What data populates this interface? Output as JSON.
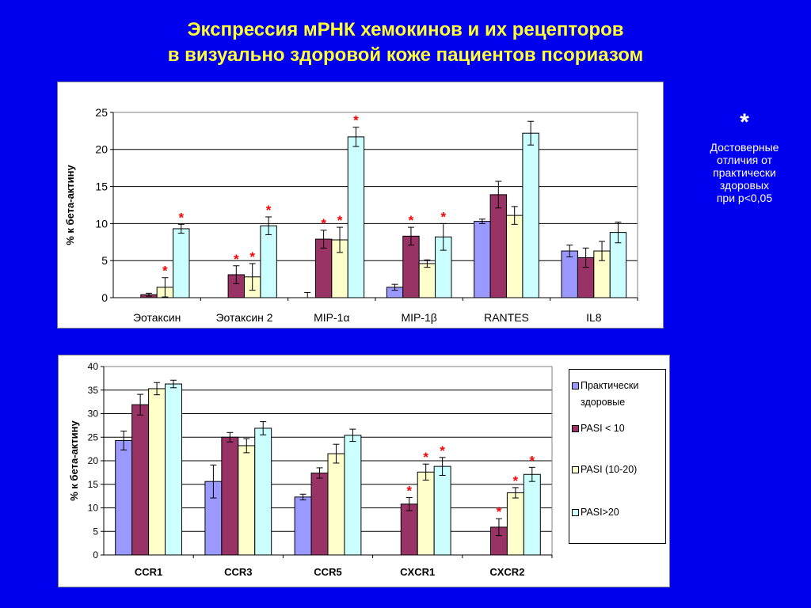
{
  "title": {
    "line1": "Экспрессия мРНК хемокинов и их рецепторов",
    "line2": "в визуально здоровой коже пациентов псориазом"
  },
  "note": {
    "star": "*",
    "lines": [
      "Достоверные",
      "отличия от",
      "практически",
      "здоровых",
      "при  p<0,05"
    ]
  },
  "colors": {
    "background": "#0000ee",
    "title": "#ffff33",
    "series": [
      "#9999ff",
      "#993366",
      "#ffffcc",
      "#ccffff"
    ],
    "significance": "#ff0000"
  },
  "legend": {
    "items": [
      {
        "lines": [
          "Практически",
          "здоровые"
        ]
      },
      {
        "lines": [
          "PASI < 10"
        ]
      },
      {
        "lines": [
          "PASI (10-20)"
        ]
      },
      {
        "lines": [
          "PASI>20"
        ]
      }
    ]
  },
  "chart_data": [
    {
      "type": "bar",
      "title": "",
      "xlabel": "",
      "ylabel": "% к бета-актину",
      "ylim": [
        0,
        25
      ],
      "yticks": [
        "0",
        "5",
        "10",
        "15",
        "20",
        "25"
      ],
      "grid": true,
      "categories": [
        "Эотаксин",
        "Эотаксин 2",
        "MIP-1α",
        "MIP-1β",
        "RANTES",
        "IL8"
      ],
      "series": [
        {
          "values": [
            0,
            0,
            0,
            1.4,
            10.3,
            6.3
          ],
          "errors": [
            0,
            0,
            0.7,
            0.4,
            0.3,
            0.8
          ]
        },
        {
          "values": [
            0.4,
            3.1,
            7.9,
            8.3,
            13.9,
            5.4
          ],
          "errors": [
            0.2,
            1.2,
            1.2,
            1.2,
            1.8,
            1.3
          ]
        },
        {
          "values": [
            1.4,
            2.8,
            7.8,
            4.6,
            11.1,
            6.3
          ],
          "errors": [
            1.3,
            1.8,
            1.7,
            0.5,
            1.2,
            1.3
          ]
        },
        {
          "values": [
            9.3,
            9.7,
            21.7,
            8.2,
            22.2,
            8.8
          ],
          "errors": [
            0.6,
            1.2,
            1.3,
            1.8,
            1.6,
            1.4
          ]
        }
      ],
      "significant": [
        [
          false,
          false,
          false,
          false,
          false,
          false
        ],
        [
          false,
          true,
          true,
          true,
          false,
          false
        ],
        [
          true,
          true,
          true,
          false,
          false,
          false
        ],
        [
          true,
          true,
          true,
          true,
          false,
          false
        ]
      ],
      "annotation_symbol": "*"
    },
    {
      "type": "bar",
      "title": "",
      "xlabel": "",
      "ylabel": "% к бета-актину",
      "ylim": [
        0,
        40
      ],
      "yticks": [
        "0",
        "5",
        "10",
        "15",
        "20",
        "25",
        "30",
        "35",
        "40"
      ],
      "grid": true,
      "legend_position": "right",
      "categories": [
        "CCR1",
        "CCR3",
        "CCR5",
        "CXCR1",
        "CXCR2"
      ],
      "series": [
        {
          "values": [
            24.3,
            15.6,
            12.3,
            0,
            0
          ],
          "errors": [
            2.0,
            3.5,
            0.6,
            0,
            0
          ]
        },
        {
          "values": [
            31.9,
            25.0,
            17.4,
            10.8,
            5.9
          ],
          "errors": [
            2.2,
            1.0,
            1.1,
            1.4,
            1.8
          ]
        },
        {
          "values": [
            35.3,
            23.2,
            21.5,
            17.6,
            13.2
          ],
          "errors": [
            1.3,
            1.5,
            2.0,
            1.7,
            1.1
          ]
        },
        {
          "values": [
            36.3,
            26.9,
            25.4,
            18.8,
            17.1
          ],
          "errors": [
            0.8,
            1.4,
            1.3,
            1.9,
            1.5
          ]
        }
      ],
      "significant": [
        [
          false,
          false,
          false,
          false,
          false
        ],
        [
          false,
          false,
          false,
          true,
          true
        ],
        [
          false,
          false,
          false,
          true,
          true
        ],
        [
          false,
          false,
          false,
          true,
          true
        ]
      ],
      "annotation_symbol": "*"
    }
  ]
}
